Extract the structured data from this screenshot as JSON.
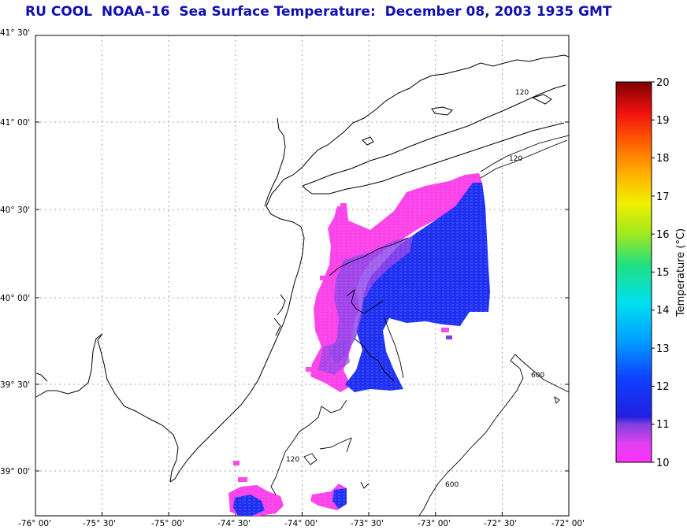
{
  "title": "RU COOL  NOAA–16  Sea Surface Temperature:  December 08, 2003 1935 GMT",
  "lat_labels": [
    "41° 30'",
    "41° 00'",
    "40° 30'",
    "40° 00'",
    "39° 30'",
    "39° 00'"
  ],
  "lon_labels": [
    "-76° 00'",
    "-75° 30'",
    "-75° 00'",
    "-74° 30'",
    "-74° 00'",
    "-73° 30'",
    "-73° 00'",
    "-72° 30'",
    "-72° 00'"
  ],
  "bathymetry_labels": [
    "120",
    "120",
    "120",
    "600",
    "600"
  ],
  "colorbar": {
    "title": "Temperature (°C)",
    "min": 10,
    "max": 20,
    "tick_values": [
      "20",
      "19",
      "18",
      "17",
      "16",
      "15",
      "14",
      "13",
      "12",
      "11",
      "10"
    ]
  },
  "colors": {
    "title": "#1010b0",
    "sst_cold": "#ff40e0",
    "sst_mid": "#6050e0",
    "sst_warm": "#1020e8",
    "coastline": "#000000",
    "grid": "#888888"
  }
}
